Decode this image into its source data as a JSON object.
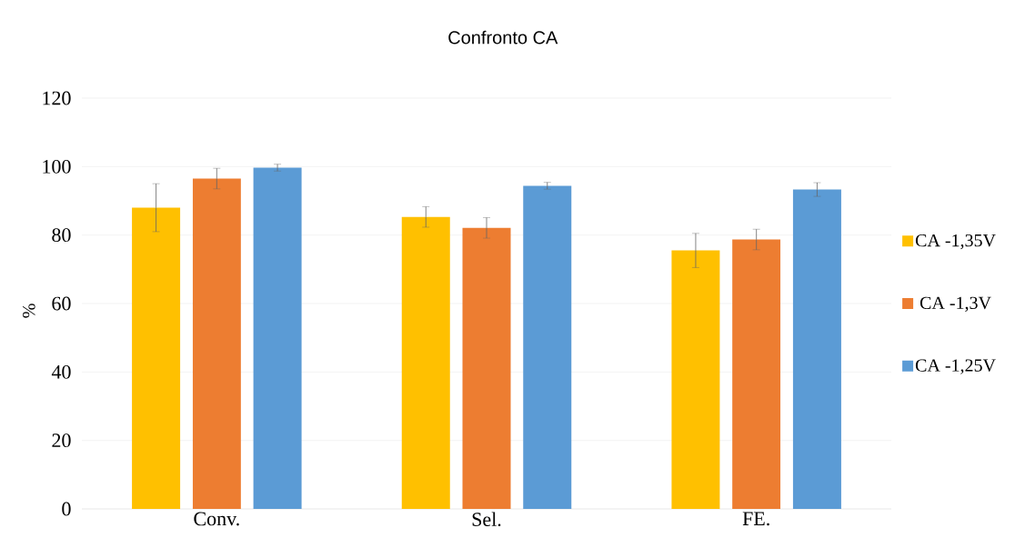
{
  "chart_data": {
    "type": "bar",
    "title": "Confronto CA",
    "ylabel": "%",
    "categories": [
      "Conv.",
      "Sel.",
      "FE."
    ],
    "series": [
      {
        "name": "CA -1,35V",
        "color": "#ffc000",
        "values": [
          88,
          85.3,
          75.5
        ],
        "errors": [
          7,
          3,
          5
        ]
      },
      {
        "name": "CA -1,3V",
        "color": "#ed7d31",
        "values": [
          96.5,
          82.1,
          78.7
        ],
        "errors": [
          3,
          3,
          3
        ]
      },
      {
        "name": "CA -1,25V",
        "color": "#5b9bd5",
        "values": [
          99.7,
          94.4,
          93.3
        ],
        "errors": [
          1,
          1,
          2
        ]
      }
    ],
    "ylim": [
      0,
      120
    ],
    "yticks": [
      0,
      20,
      40,
      60,
      80,
      100,
      120
    ],
    "grid": "y",
    "legend": "right"
  }
}
